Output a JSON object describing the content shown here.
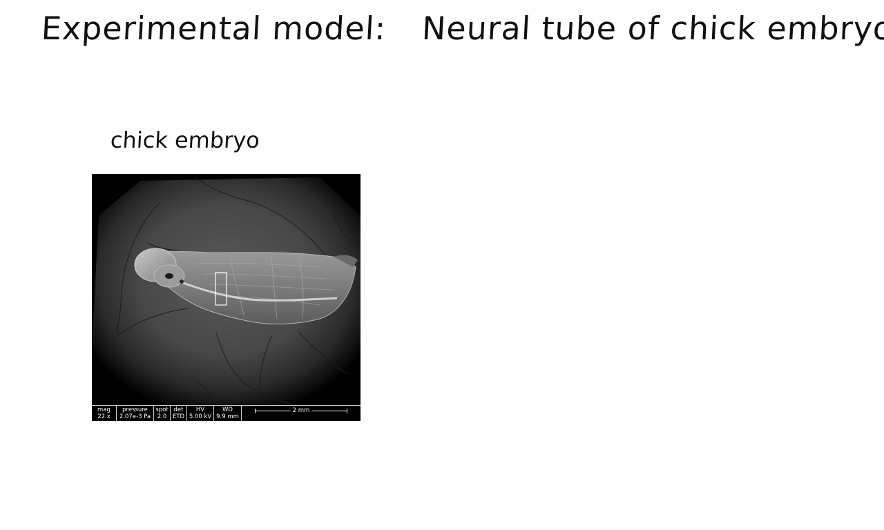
{
  "slide": {
    "title_prefix": "Experimental model:",
    "title_main": "Neural tube of chick embryo",
    "panel_label": "chick embryo"
  },
  "sem_image": {
    "subject": "scanning electron micrograph of chick embryo with highlighted neural tube region",
    "databar": {
      "mag_header": "mag",
      "mag_value": "22 x",
      "pressure_header": "pressure",
      "pressure_value": "2.07e-3 Pa",
      "spot_header": "spot",
      "spot_value": "2.0",
      "det_header": "det",
      "det_value": "ETD",
      "hv_header": "HV",
      "hv_value": "5.00 kV",
      "wd_header": "WD",
      "wd_value": "9.9 mm",
      "scale_label": "2 mm"
    }
  }
}
